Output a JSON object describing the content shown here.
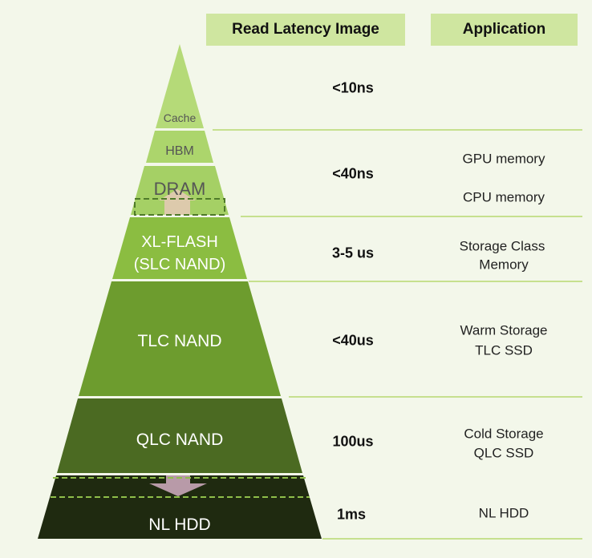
{
  "headers": {
    "latency": "Read Latency Image",
    "application": "Application"
  },
  "colors": {
    "header_bg": "#cfe6a0",
    "cache": "#b5da78",
    "hbm": "#acd56c",
    "dram": "#a5d065",
    "xl_flash": "#8bbd41",
    "tlc": "#6d9c2e",
    "qlc": "#4b6a22",
    "hdd": "#1f2a10",
    "divider": "#c6e08e"
  },
  "layers": {
    "cache": "Cache",
    "hbm": "HBM",
    "dram": "DRAM",
    "xl_flash": "XL-FLASH",
    "xl_flash_sub": "(SLC NAND)",
    "tlc": "TLC NAND",
    "qlc": "QLC NAND",
    "hdd": "NL HDD"
  },
  "latency": [
    "<10ns",
    "<40ns",
    "3-5 us",
    "<40us",
    "100us",
    "1ms"
  ],
  "applications": {
    "gpu": "GPU memory",
    "cpu": "CPU memory",
    "scm_1": "Storage Class",
    "scm_2": "Memory",
    "warm_1": "Warm Storage",
    "warm_2": "TLC SSD",
    "cold_1": "Cold Storage",
    "cold_2": "QLC SSD",
    "hdd": "NL HDD"
  },
  "icons": {
    "dram_arrow": "up-arrow-icon",
    "hdd_arrow": "down-arrow-icon"
  }
}
